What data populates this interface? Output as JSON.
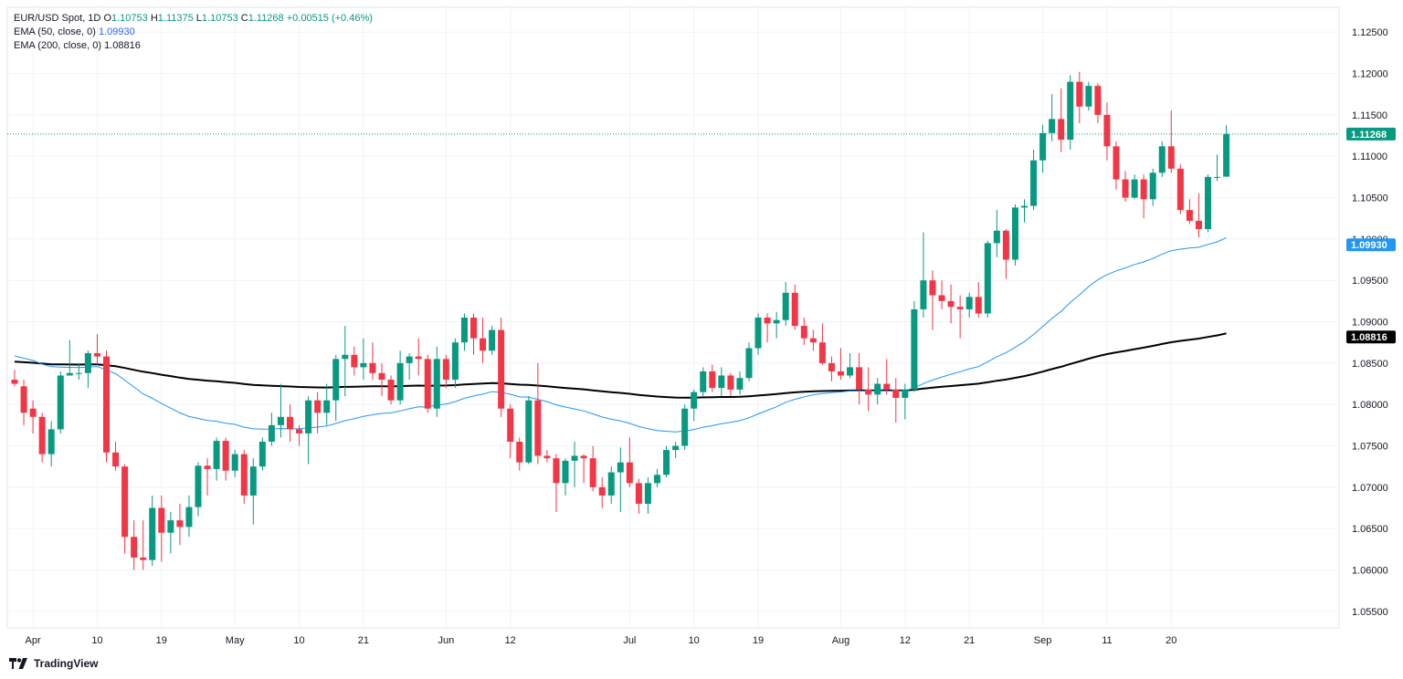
{
  "legend": {
    "symbol": "EUR/USD Spot, 1D",
    "o_label": "O",
    "o": "1.10753",
    "h_label": "H",
    "h": "1.11375",
    "l_label": "L",
    "l": "1.10753",
    "c_label": "C",
    "c": "1.11268",
    "change": "+0.00515 (+0.46%)",
    "ema50_label": "EMA (50, close, 0)",
    "ema50_value": "1.09930",
    "ema200_label": "EMA (200, close, 0)",
    "ema200_value": "1.08816"
  },
  "brand": {
    "name": "TradingView"
  },
  "colors": {
    "up": "#089981",
    "down": "#f23645",
    "ema50": "#2196f3",
    "ema200": "#000000",
    "grid": "#f0f3fa",
    "text": "#131722"
  },
  "chart_data": {
    "type": "candlestick",
    "y_ticks": [
      1.125,
      1.12,
      1.115,
      1.11,
      1.105,
      1.1,
      1.095,
      1.09,
      1.085,
      1.08,
      1.075,
      1.07,
      1.065,
      1.06,
      1.055
    ],
    "y_tick_labels": [
      "1.12500",
      "1.12000",
      "1.11500",
      "1.11000",
      "1.10500",
      "1.10000",
      "1.09500",
      "1.09000",
      "1.08500",
      "1.08000",
      "1.07500",
      "1.07000",
      "1.06500",
      "1.06000",
      "1.05500"
    ],
    "ylim": [
      1.053,
      1.128
    ],
    "x_ticks": [
      {
        "label": "Apr",
        "date": "2024-04-01"
      },
      {
        "label": "10",
        "date": "2024-04-10"
      },
      {
        "label": "19",
        "date": "2024-04-19"
      },
      {
        "label": "May",
        "date": "2024-05-01"
      },
      {
        "label": "10",
        "date": "2024-05-10"
      },
      {
        "label": "21",
        "date": "2024-05-21"
      },
      {
        "label": "Jun",
        "date": "2024-06-03"
      },
      {
        "label": "12",
        "date": "2024-06-12"
      },
      {
        "label": "Jul",
        "date": "2024-07-01"
      },
      {
        "label": "10",
        "date": "2024-07-10"
      },
      {
        "label": "19",
        "date": "2024-07-19"
      },
      {
        "label": "Aug",
        "date": "2024-08-01"
      },
      {
        "label": "12",
        "date": "2024-08-12"
      },
      {
        "label": "21",
        "date": "2024-08-21"
      },
      {
        "label": "Sep",
        "date": "2024-09-02"
      },
      {
        "label": "11",
        "date": "2024-09-11"
      },
      {
        "label": "20",
        "date": "2024-09-20"
      }
    ],
    "last_price": {
      "value": 1.11268,
      "label": "1.11268"
    },
    "ema50_label": {
      "value": 1.0993,
      "label": "1.09930"
    },
    "ema200_label": {
      "value": 1.08816,
      "label": "1.08816"
    },
    "candles": [
      {
        "d": "2024-03-27",
        "o": 1.083,
        "h": 1.0842,
        "l": 1.0822,
        "c": 1.0825
      },
      {
        "d": "2024-03-28",
        "o": 1.0822,
        "h": 1.083,
        "l": 1.0775,
        "c": 1.079
      },
      {
        "d": "2024-04-01",
        "o": 1.0795,
        "h": 1.0805,
        "l": 1.0765,
        "c": 1.0785
      },
      {
        "d": "2024-04-02",
        "o": 1.0785,
        "h": 1.079,
        "l": 1.073,
        "c": 1.074
      },
      {
        "d": "2024-04-03",
        "o": 1.074,
        "h": 1.078,
        "l": 1.0725,
        "c": 1.077
      },
      {
        "d": "2024-04-04",
        "o": 1.077,
        "h": 1.084,
        "l": 1.0765,
        "c": 1.0835
      },
      {
        "d": "2024-04-05",
        "o": 1.0835,
        "h": 1.0878,
        "l": 1.0835,
        "c": 1.0838
      },
      {
        "d": "2024-04-08",
        "o": 1.0838,
        "h": 1.085,
        "l": 1.083,
        "c": 1.0838
      },
      {
        "d": "2024-04-09",
        "o": 1.0838,
        "h": 1.0865,
        "l": 1.082,
        "c": 1.0862
      },
      {
        "d": "2024-04-10",
        "o": 1.0862,
        "h": 1.0885,
        "l": 1.0848,
        "c": 1.0858
      },
      {
        "d": "2024-04-11",
        "o": 1.0858,
        "h": 1.0865,
        "l": 1.073,
        "c": 1.0742
      },
      {
        "d": "2024-04-12",
        "o": 1.0742,
        "h": 1.0755,
        "l": 1.072,
        "c": 1.0725
      },
      {
        "d": "2024-04-15",
        "o": 1.0725,
        "h": 1.0728,
        "l": 1.062,
        "c": 1.064
      },
      {
        "d": "2024-04-16",
        "o": 1.064,
        "h": 1.066,
        "l": 1.06,
        "c": 1.0615
      },
      {
        "d": "2024-04-17",
        "o": 1.0615,
        "h": 1.066,
        "l": 1.06,
        "c": 1.0612
      },
      {
        "d": "2024-04-18",
        "o": 1.0612,
        "h": 1.069,
        "l": 1.0605,
        "c": 1.0675
      },
      {
        "d": "2024-04-19",
        "o": 1.0675,
        "h": 1.069,
        "l": 1.061,
        "c": 1.0645
      },
      {
        "d": "2024-04-22",
        "o": 1.0645,
        "h": 1.067,
        "l": 1.062,
        "c": 1.066
      },
      {
        "d": "2024-04-23",
        "o": 1.066,
        "h": 1.068,
        "l": 1.063,
        "c": 1.0652
      },
      {
        "d": "2024-04-24",
        "o": 1.0652,
        "h": 1.069,
        "l": 1.064,
        "c": 1.0676
      },
      {
        "d": "2024-04-25",
        "o": 1.0676,
        "h": 1.073,
        "l": 1.0665,
        "c": 1.0726
      },
      {
        "d": "2024-04-26",
        "o": 1.0726,
        "h": 1.0735,
        "l": 1.069,
        "c": 1.0722
      },
      {
        "d": "2024-04-29",
        "o": 1.0722,
        "h": 1.076,
        "l": 1.0708,
        "c": 1.0756
      },
      {
        "d": "2024-04-30",
        "o": 1.0756,
        "h": 1.076,
        "l": 1.0708,
        "c": 1.072
      },
      {
        "d": "2024-05-01",
        "o": 1.072,
        "h": 1.0745,
        "l": 1.0712,
        "c": 1.074
      },
      {
        "d": "2024-05-02",
        "o": 1.074,
        "h": 1.0745,
        "l": 1.068,
        "c": 1.069
      },
      {
        "d": "2024-05-03",
        "o": 1.069,
        "h": 1.0735,
        "l": 1.0655,
        "c": 1.0725
      },
      {
        "d": "2024-05-06",
        "o": 1.0725,
        "h": 1.076,
        "l": 1.072,
        "c": 1.0755
      },
      {
        "d": "2024-05-07",
        "o": 1.0755,
        "h": 1.079,
        "l": 1.075,
        "c": 1.0775
      },
      {
        "d": "2024-05-08",
        "o": 1.0775,
        "h": 1.0825,
        "l": 1.076,
        "c": 1.0785
      },
      {
        "d": "2024-05-09",
        "o": 1.0785,
        "h": 1.08,
        "l": 1.0755,
        "c": 1.077
      },
      {
        "d": "2024-05-10",
        "o": 1.077,
        "h": 1.0775,
        "l": 1.075,
        "c": 1.0765
      },
      {
        "d": "2024-05-13",
        "o": 1.0765,
        "h": 1.081,
        "l": 1.0728,
        "c": 1.0805
      },
      {
        "d": "2024-05-14",
        "o": 1.0805,
        "h": 1.0815,
        "l": 1.0765,
        "c": 1.079
      },
      {
        "d": "2024-05-15",
        "o": 1.079,
        "h": 1.0825,
        "l": 1.0775,
        "c": 1.0805
      },
      {
        "d": "2024-05-16",
        "o": 1.0805,
        "h": 1.086,
        "l": 1.078,
        "c": 1.0855
      },
      {
        "d": "2024-05-17",
        "o": 1.0855,
        "h": 1.0895,
        "l": 1.081,
        "c": 1.086
      },
      {
        "d": "2024-05-20",
        "o": 1.086,
        "h": 1.087,
        "l": 1.0835,
        "c": 1.0845
      },
      {
        "d": "2024-05-21",
        "o": 1.0845,
        "h": 1.088,
        "l": 1.083,
        "c": 1.085
      },
      {
        "d": "2024-05-22",
        "o": 1.085,
        "h": 1.0875,
        "l": 1.083,
        "c": 1.0838
      },
      {
        "d": "2024-05-23",
        "o": 1.0838,
        "h": 1.085,
        "l": 1.081,
        "c": 1.083
      },
      {
        "d": "2024-05-24",
        "o": 1.083,
        "h": 1.0835,
        "l": 1.08,
        "c": 1.0805
      },
      {
        "d": "2024-05-27",
        "o": 1.0805,
        "h": 1.0865,
        "l": 1.08,
        "c": 1.085
      },
      {
        "d": "2024-05-28",
        "o": 1.085,
        "h": 1.0862,
        "l": 1.083,
        "c": 1.0858
      },
      {
        "d": "2024-05-29",
        "o": 1.0858,
        "h": 1.088,
        "l": 1.0835,
        "c": 1.0855
      },
      {
        "d": "2024-05-30",
        "o": 1.0855,
        "h": 1.086,
        "l": 1.079,
        "c": 1.0795
      },
      {
        "d": "2024-05-31",
        "o": 1.0795,
        "h": 1.087,
        "l": 1.0785,
        "c": 1.0855
      },
      {
        "d": "2024-06-03",
        "o": 1.0855,
        "h": 1.086,
        "l": 1.082,
        "c": 1.083
      },
      {
        "d": "2024-06-04",
        "o": 1.083,
        "h": 1.088,
        "l": 1.082,
        "c": 1.0875
      },
      {
        "d": "2024-06-05",
        "o": 1.0875,
        "h": 1.091,
        "l": 1.0865,
        "c": 1.0905
      },
      {
        "d": "2024-06-06",
        "o": 1.0905,
        "h": 1.091,
        "l": 1.086,
        "c": 1.088
      },
      {
        "d": "2024-06-07",
        "o": 1.088,
        "h": 1.0905,
        "l": 1.085,
        "c": 1.0865
      },
      {
        "d": "2024-06-10",
        "o": 1.0865,
        "h": 1.0895,
        "l": 1.086,
        "c": 1.089
      },
      {
        "d": "2024-06-11",
        "o": 1.089,
        "h": 1.0905,
        "l": 1.0785,
        "c": 1.0795
      },
      {
        "d": "2024-06-12",
        "o": 1.0795,
        "h": 1.08,
        "l": 1.0735,
        "c": 1.0755
      },
      {
        "d": "2024-06-13",
        "o": 1.0755,
        "h": 1.076,
        "l": 1.072,
        "c": 1.073
      },
      {
        "d": "2024-06-14",
        "o": 1.073,
        "h": 1.081,
        "l": 1.0728,
        "c": 1.0805
      },
      {
        "d": "2024-06-17",
        "o": 1.0805,
        "h": 1.085,
        "l": 1.0728,
        "c": 1.0738
      },
      {
        "d": "2024-06-18",
        "o": 1.0738,
        "h": 1.0745,
        "l": 1.073,
        "c": 1.0735
      },
      {
        "d": "2024-06-19",
        "o": 1.0735,
        "h": 1.074,
        "l": 1.067,
        "c": 1.0705
      },
      {
        "d": "2024-06-20",
        "o": 1.0705,
        "h": 1.0735,
        "l": 1.069,
        "c": 1.0732
      },
      {
        "d": "2024-06-21",
        "o": 1.0732,
        "h": 1.0755,
        "l": 1.07,
        "c": 1.0738
      },
      {
        "d": "2024-06-24",
        "o": 1.0738,
        "h": 1.074,
        "l": 1.0705,
        "c": 1.0735
      },
      {
        "d": "2024-06-25",
        "o": 1.0735,
        "h": 1.075,
        "l": 1.0695,
        "c": 1.07
      },
      {
        "d": "2024-06-26",
        "o": 1.07,
        "h": 1.0712,
        "l": 1.0675,
        "c": 1.069
      },
      {
        "d": "2024-06-27",
        "o": 1.069,
        "h": 1.0725,
        "l": 1.068,
        "c": 1.0718
      },
      {
        "d": "2024-06-28",
        "o": 1.0718,
        "h": 1.0748,
        "l": 1.067,
        "c": 1.073
      },
      {
        "d": "2024-07-01",
        "o": 1.073,
        "h": 1.076,
        "l": 1.07,
        "c": 1.0705
      },
      {
        "d": "2024-07-02",
        "o": 1.0705,
        "h": 1.071,
        "l": 1.0668,
        "c": 1.068
      },
      {
        "d": "2024-07-03",
        "o": 1.068,
        "h": 1.0712,
        "l": 1.0668,
        "c": 1.0705
      },
      {
        "d": "2024-07-04",
        "o": 1.0705,
        "h": 1.0722,
        "l": 1.07,
        "c": 1.0715
      },
      {
        "d": "2024-07-05",
        "o": 1.0715,
        "h": 1.075,
        "l": 1.0712,
        "c": 1.0745
      },
      {
        "d": "2024-07-08",
        "o": 1.0745,
        "h": 1.0755,
        "l": 1.0735,
        "c": 1.075
      },
      {
        "d": "2024-07-09",
        "o": 1.075,
        "h": 1.08,
        "l": 1.0745,
        "c": 1.0795
      },
      {
        "d": "2024-07-10",
        "o": 1.0795,
        "h": 1.0818,
        "l": 1.078,
        "c": 1.0815
      },
      {
        "d": "2024-07-11",
        "o": 1.0815,
        "h": 1.0845,
        "l": 1.081,
        "c": 1.084
      },
      {
        "d": "2024-07-12",
        "o": 1.084,
        "h": 1.0848,
        "l": 1.0815,
        "c": 1.082
      },
      {
        "d": "2024-07-15",
        "o": 1.082,
        "h": 1.0845,
        "l": 1.081,
        "c": 1.0835
      },
      {
        "d": "2024-07-16",
        "o": 1.0835,
        "h": 1.0838,
        "l": 1.081,
        "c": 1.0818
      },
      {
        "d": "2024-07-17",
        "o": 1.0818,
        "h": 1.084,
        "l": 1.0812,
        "c": 1.0832
      },
      {
        "d": "2024-07-18",
        "o": 1.0832,
        "h": 1.0875,
        "l": 1.0828,
        "c": 1.0868
      },
      {
        "d": "2024-07-19",
        "o": 1.0868,
        "h": 1.091,
        "l": 1.086,
        "c": 1.0905
      },
      {
        "d": "2024-07-22",
        "o": 1.0905,
        "h": 1.091,
        "l": 1.0875,
        "c": 1.0898
      },
      {
        "d": "2024-07-23",
        "o": 1.0898,
        "h": 1.0912,
        "l": 1.088,
        "c": 1.0902
      },
      {
        "d": "2024-07-24",
        "o": 1.0902,
        "h": 1.0948,
        "l": 1.0895,
        "c": 1.0935
      },
      {
        "d": "2024-07-25",
        "o": 1.0935,
        "h": 1.0945,
        "l": 1.089,
        "c": 1.0895
      },
      {
        "d": "2024-07-26",
        "o": 1.0895,
        "h": 1.0905,
        "l": 1.0872,
        "c": 1.088
      },
      {
        "d": "2024-07-29",
        "o": 1.088,
        "h": 1.089,
        "l": 1.0865,
        "c": 1.0875
      },
      {
        "d": "2024-07-30",
        "o": 1.0875,
        "h": 1.0898,
        "l": 1.0848,
        "c": 1.085
      },
      {
        "d": "2024-07-31",
        "o": 1.085,
        "h": 1.0858,
        "l": 1.0828,
        "c": 1.084
      },
      {
        "d": "2024-08-01",
        "o": 1.084,
        "h": 1.0868,
        "l": 1.083,
        "c": 1.0835
      },
      {
        "d": "2024-08-02",
        "o": 1.0835,
        "h": 1.0862,
        "l": 1.0832,
        "c": 1.0845
      },
      {
        "d": "2024-08-05",
        "o": 1.0845,
        "h": 1.0862,
        "l": 1.08,
        "c": 1.0818
      },
      {
        "d": "2024-08-06",
        "o": 1.0818,
        "h": 1.0845,
        "l": 1.0792,
        "c": 1.0812
      },
      {
        "d": "2024-08-07",
        "o": 1.0812,
        "h": 1.0832,
        "l": 1.08,
        "c": 1.0825
      },
      {
        "d": "2024-08-08",
        "o": 1.0825,
        "h": 1.0855,
        "l": 1.0812,
        "c": 1.0818
      },
      {
        "d": "2024-08-09",
        "o": 1.0818,
        "h": 1.0832,
        "l": 1.0778,
        "c": 1.0808
      },
      {
        "d": "2024-08-12",
        "o": 1.0808,
        "h": 1.0825,
        "l": 1.0782,
        "c": 1.0818
      },
      {
        "d": "2024-08-13",
        "o": 1.0818,
        "h": 1.0925,
        "l": 1.0815,
        "c": 1.0915
      },
      {
        "d": "2024-08-14",
        "o": 1.0915,
        "h": 1.1008,
        "l": 1.0905,
        "c": 1.095
      },
      {
        "d": "2024-08-15",
        "o": 1.095,
        "h": 1.0962,
        "l": 1.089,
        "c": 1.0932
      },
      {
        "d": "2024-08-16",
        "o": 1.0932,
        "h": 1.095,
        "l": 1.0915,
        "c": 1.0925
      },
      {
        "d": "2024-08-19",
        "o": 1.0925,
        "h": 1.0945,
        "l": 1.0898,
        "c": 1.0918
      },
      {
        "d": "2024-08-20",
        "o": 1.0918,
        "h": 1.0932,
        "l": 1.088,
        "c": 1.0915
      },
      {
        "d": "2024-08-21",
        "o": 1.0915,
        "h": 1.0935,
        "l": 1.0905,
        "c": 1.093
      },
      {
        "d": "2024-08-22",
        "o": 1.093,
        "h": 1.0948,
        "l": 1.0905,
        "c": 1.091
      },
      {
        "d": "2024-08-23",
        "o": 1.091,
        "h": 1.0998,
        "l": 1.0905,
        "c": 1.0995
      },
      {
        "d": "2024-08-26",
        "o": 1.0995,
        "h": 1.1035,
        "l": 1.0978,
        "c": 1.101
      },
      {
        "d": "2024-08-27",
        "o": 1.101,
        "h": 1.1012,
        "l": 1.0952,
        "c": 1.0975
      },
      {
        "d": "2024-08-28",
        "o": 1.0975,
        "h": 1.1042,
        "l": 1.0968,
        "c": 1.1038
      },
      {
        "d": "2024-08-29",
        "o": 1.1038,
        "h": 1.1048,
        "l": 1.102,
        "c": 1.104
      },
      {
        "d": "2024-08-30",
        "o": 1.104,
        "h": 1.1108,
        "l": 1.1035,
        "c": 1.1095
      },
      {
        "d": "2024-09-02",
        "o": 1.1095,
        "h": 1.1138,
        "l": 1.108,
        "c": 1.1128
      },
      {
        "d": "2024-09-03",
        "o": 1.1128,
        "h": 1.1175,
        "l": 1.1118,
        "c": 1.1145
      },
      {
        "d": "2024-09-04",
        "o": 1.1145,
        "h": 1.1182,
        "l": 1.1105,
        "c": 1.112
      },
      {
        "d": "2024-09-05",
        "o": 1.112,
        "h": 1.1198,
        "l": 1.1108,
        "c": 1.119
      },
      {
        "d": "2024-09-06",
        "o": 1.119,
        "h": 1.1202,
        "l": 1.114,
        "c": 1.116
      },
      {
        "d": "2024-09-09",
        "o": 1.116,
        "h": 1.119,
        "l": 1.1155,
        "c": 1.1185
      },
      {
        "d": "2024-09-10",
        "o": 1.1185,
        "h": 1.1188,
        "l": 1.114,
        "c": 1.115
      },
      {
        "d": "2024-09-11",
        "o": 1.115,
        "h": 1.1165,
        "l": 1.1095,
        "c": 1.1112
      },
      {
        "d": "2024-09-12",
        "o": 1.1112,
        "h": 1.1118,
        "l": 1.106,
        "c": 1.1072
      },
      {
        "d": "2024-09-13",
        "o": 1.1072,
        "h": 1.1082,
        "l": 1.1045,
        "c": 1.105
      },
      {
        "d": "2024-09-16",
        "o": 1.105,
        "h": 1.1078,
        "l": 1.1048,
        "c": 1.1072
      },
      {
        "d": "2024-09-17",
        "o": 1.1072,
        "h": 1.1078,
        "l": 1.1025,
        "c": 1.1048
      },
      {
        "d": "2024-09-18",
        "o": 1.1048,
        "h": 1.1085,
        "l": 1.104,
        "c": 1.108
      },
      {
        "d": "2024-09-19",
        "o": 1.108,
        "h": 1.1118,
        "l": 1.1075,
        "c": 1.1112
      },
      {
        "d": "2024-09-20",
        "o": 1.1112,
        "h": 1.1155,
        "l": 1.108,
        "c": 1.1085
      },
      {
        "d": "2024-09-23",
        "o": 1.1085,
        "h": 1.109,
        "l": 1.103,
        "c": 1.1035
      },
      {
        "d": "2024-09-24",
        "o": 1.1035,
        "h": 1.1048,
        "l": 1.1018,
        "c": 1.1022
      },
      {
        "d": "2024-09-25",
        "o": 1.1022,
        "h": 1.1055,
        "l": 1.1002,
        "c": 1.1012
      },
      {
        "d": "2024-09-26",
        "o": 1.1012,
        "h": 1.1078,
        "l": 1.1008,
        "c": 1.1075
      },
      {
        "d": "2024-09-27",
        "o": 1.1075,
        "h": 1.1102,
        "l": 1.107,
        "c": 1.1075
      },
      {
        "d": "2024-09-30",
        "o": 1.10753,
        "h": 1.11375,
        "l": 1.10753,
        "c": 1.11268
      }
    ]
  }
}
